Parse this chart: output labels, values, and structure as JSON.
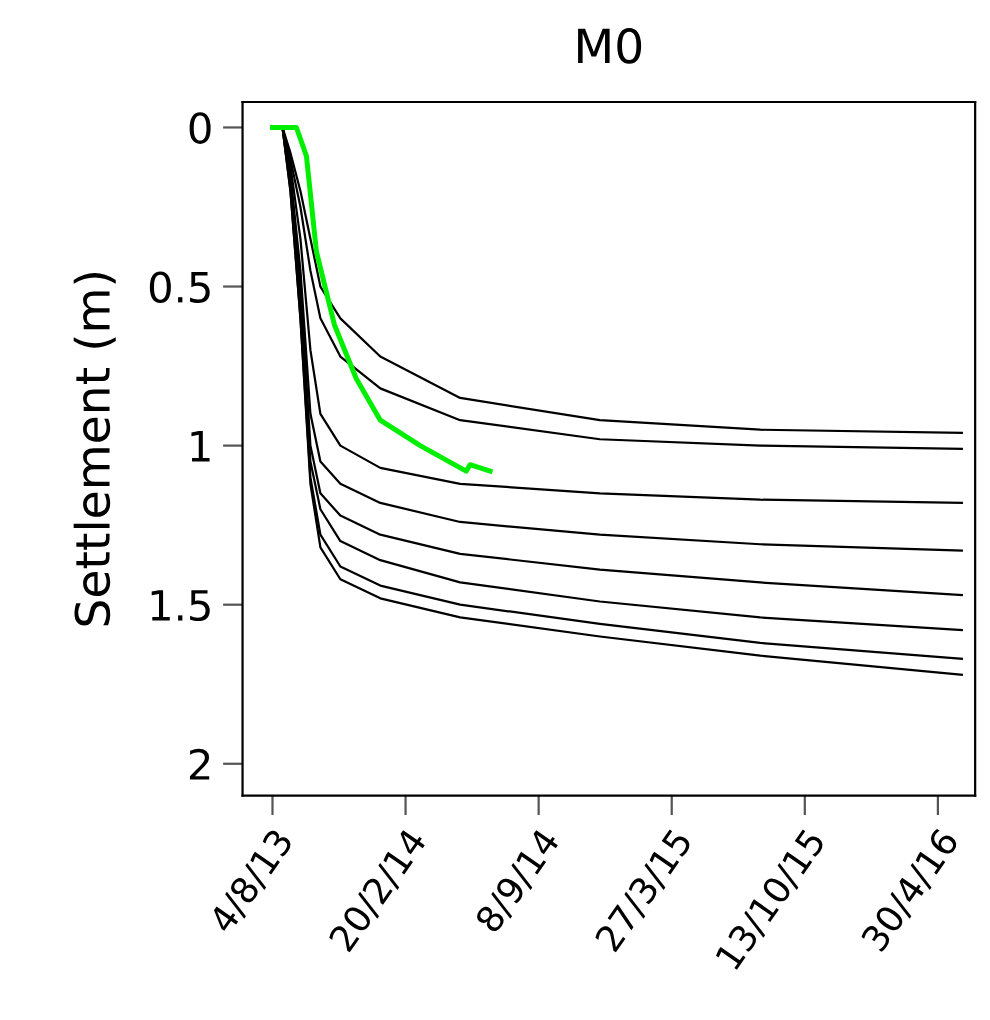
{
  "chart_data": {
    "type": "line",
    "title": "M0",
    "ylabel": "Settlement (m)",
    "x": [
      "2013-08-19",
      "2013-08-31",
      "2013-09-15",
      "2013-09-30",
      "2013-10-15",
      "2013-11-14",
      "2014-01-13",
      "2014-05-13",
      "2014-12-09",
      "2015-08-07",
      "2016-06-05"
    ],
    "series": [
      {
        "color": "#000000",
        "values": [
          0,
          0.08,
          0.2,
          0.35,
          0.5,
          0.6,
          0.72,
          0.85,
          0.92,
          0.95,
          0.96
        ]
      },
      {
        "color": "#000000",
        "values": [
          0,
          0.1,
          0.25,
          0.45,
          0.6,
          0.72,
          0.82,
          0.92,
          0.98,
          1.0,
          1.01
        ]
      },
      {
        "color": "#000000",
        "values": [
          0,
          0.12,
          0.35,
          0.7,
          0.9,
          1.0,
          1.07,
          1.12,
          1.15,
          1.17,
          1.18
        ]
      },
      {
        "color": "#000000",
        "values": [
          0,
          0.15,
          0.45,
          0.9,
          1.05,
          1.12,
          1.18,
          1.24,
          1.28,
          1.31,
          1.33
        ]
      },
      {
        "color": "#000000",
        "values": [
          0,
          0.15,
          0.5,
          1.0,
          1.15,
          1.22,
          1.28,
          1.34,
          1.39,
          1.43,
          1.47
        ]
      },
      {
        "color": "#000000",
        "values": [
          0,
          0.18,
          0.55,
          1.05,
          1.2,
          1.3,
          1.36,
          1.43,
          1.49,
          1.54,
          1.58
        ]
      },
      {
        "color": "#000000",
        "values": [
          0,
          0.2,
          0.6,
          1.1,
          1.28,
          1.38,
          1.44,
          1.5,
          1.56,
          1.62,
          1.67
        ]
      },
      {
        "color": "#000000",
        "values": [
          0,
          0.2,
          0.6,
          1.12,
          1.32,
          1.42,
          1.48,
          1.54,
          1.6,
          1.66,
          1.72
        ]
      },
      {
        "color": "#00ee00",
        "x": [
          "2013-08-04",
          "2013-09-09",
          "2013-09-24",
          "2013-10-09",
          "2013-11-05",
          "2013-12-08",
          "2014-01-13",
          "2014-03-14",
          "2014-05-22",
          "2014-05-28",
          "2014-06-12",
          "2014-06-27"
        ],
        "values": [
          0,
          0,
          0.09,
          0.39,
          0.62,
          0.79,
          0.92,
          1.0,
          1.08,
          1.06,
          1.07,
          1.08
        ]
      }
    ],
    "xlim": [
      "2013-06-20",
      "2016-06-25"
    ],
    "xticks": [
      {
        "value": "2013-08-04",
        "label": "4/8/13"
      },
      {
        "value": "2014-02-20",
        "label": "20/2/14"
      },
      {
        "value": "2014-09-08",
        "label": "8/9/14"
      },
      {
        "value": "2015-03-27",
        "label": "27/3/15"
      },
      {
        "value": "2015-10-13",
        "label": "13/10/15"
      },
      {
        "value": "2016-04-30",
        "label": "30/4/16"
      }
    ],
    "ylim": [
      2.1,
      -0.08
    ],
    "yticks": [
      0,
      0.5,
      1,
      1.5,
      2
    ],
    "grid": false,
    "marker": "none",
    "line_style": "solid"
  }
}
